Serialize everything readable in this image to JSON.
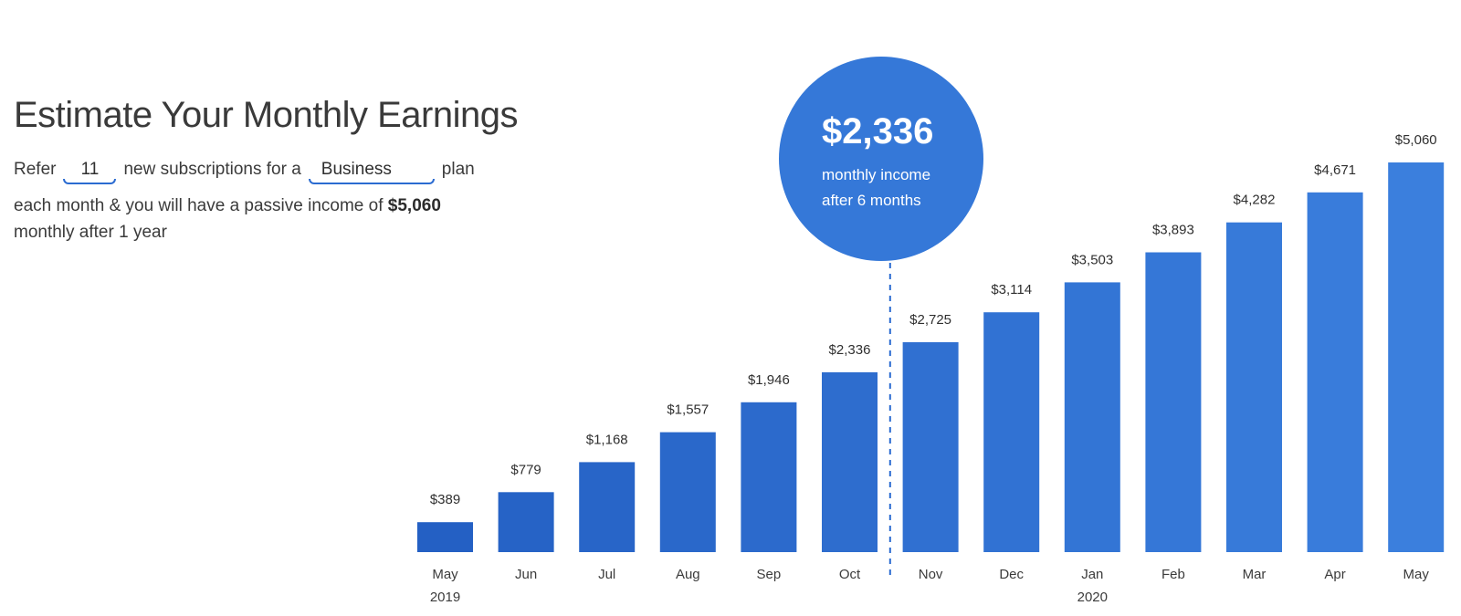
{
  "header": {
    "title": "Estimate Your Monthly Earnings"
  },
  "sentence": {
    "part1": "Refer",
    "subscriptions_count": "11",
    "part2": "new subscriptions for a",
    "plan": "Business",
    "part3": "plan",
    "part4": "each month & you will have a passive income of",
    "yearly_amount": "$5,060",
    "part5": "monthly after 1 year"
  },
  "bubble": {
    "value": "$2,336",
    "caption_line1": "monthly income",
    "caption_line2": "after 6 months"
  },
  "colors": {
    "bar_start": "#2460c4",
    "bar_end": "#3b7fdd",
    "bubble": "#3578d8",
    "divider": "#2a6bd1",
    "text": "#3b3b3b"
  },
  "chart_data": {
    "type": "bar",
    "categories": [
      "May",
      "Jun",
      "Jul",
      "Aug",
      "Sep",
      "Oct",
      "Nov",
      "Dec",
      "Jan",
      "Feb",
      "Mar",
      "Apr",
      "May"
    ],
    "year_labels": [
      {
        "index": 0,
        "label": "2019"
      },
      {
        "index": 8,
        "label": "2020"
      }
    ],
    "values": [
      389,
      779,
      1168,
      1557,
      1946,
      2336,
      2725,
      3114,
      3503,
      3893,
      4282,
      4671,
      5060
    ],
    "value_labels": [
      "$389",
      "$779",
      "$1,168",
      "$1,557",
      "$1,946",
      "$2,336",
      "$2,725",
      "$3,114",
      "$3,503",
      "$3,893",
      "$4,282",
      "$4,671",
      "$5,060"
    ],
    "highlight_index": 5,
    "ylim": [
      0,
      5060
    ],
    "grid": false,
    "title": "",
    "xlabel": "",
    "ylabel": ""
  }
}
